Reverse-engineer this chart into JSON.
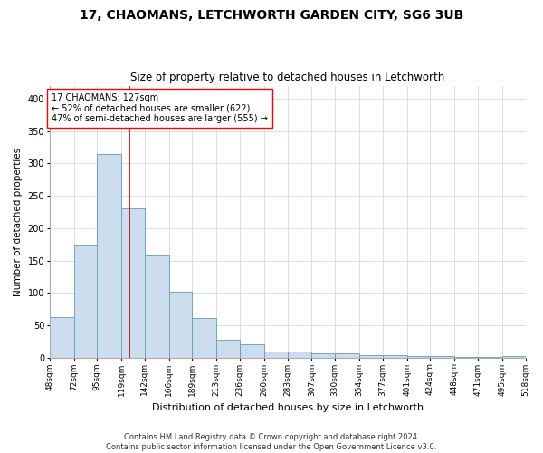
{
  "title1": "17, CHAOMANS, LETCHWORTH GARDEN CITY, SG6 3UB",
  "title2": "Size of property relative to detached houses in Letchworth",
  "xlabel": "Distribution of detached houses by size in Letchworth",
  "ylabel": "Number of detached properties",
  "bar_color": "#ccdded",
  "bar_edge_color": "#6699bb",
  "marker_line_color": "#cc0000",
  "marker_value": 127,
  "annotation_line1": "17 CHAOMANS: 127sqm",
  "annotation_line2": "← 52% of detached houses are smaller (622)",
  "annotation_line3": "47% of semi-detached houses are larger (555) →",
  "bin_edges": [
    48,
    72,
    95,
    119,
    142,
    166,
    189,
    213,
    236,
    260,
    283,
    307,
    330,
    354,
    377,
    401,
    424,
    448,
    471,
    495,
    518
  ],
  "bar_heights": [
    62,
    175,
    315,
    230,
    158,
    102,
    61,
    28,
    21,
    9,
    10,
    7,
    7,
    4,
    4,
    2,
    2,
    1,
    1,
    2
  ],
  "tick_labels": [
    "48sqm",
    "72sqm",
    "95sqm",
    "119sqm",
    "142sqm",
    "166sqm",
    "189sqm",
    "213sqm",
    "236sqm",
    "260sqm",
    "283sqm",
    "307sqm",
    "330sqm",
    "354sqm",
    "377sqm",
    "401sqm",
    "424sqm",
    "448sqm",
    "471sqm",
    "495sqm",
    "518sqm"
  ],
  "ylim": [
    0,
    420
  ],
  "yticks": [
    0,
    50,
    100,
    150,
    200,
    250,
    300,
    350,
    400
  ],
  "footer": "Contains HM Land Registry data © Crown copyright and database right 2024.\nContains public sector information licensed under the Open Government Licence v3.0.",
  "background_color": "#ffffff",
  "grid_color": "#d0d8e0"
}
